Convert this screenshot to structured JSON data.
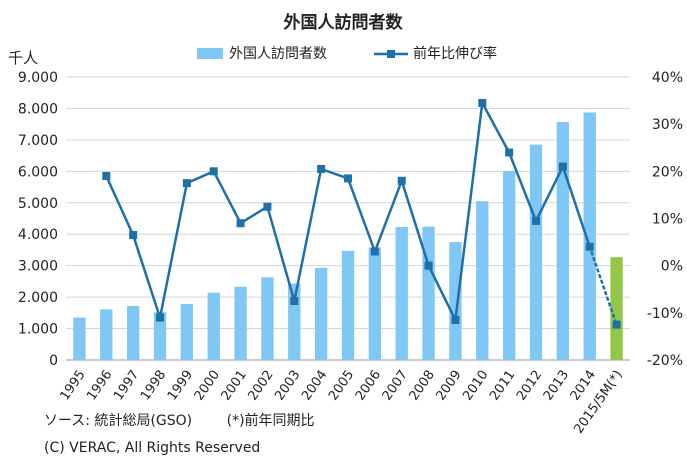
{
  "chart_data": {
    "type": "bar",
    "title": "外国人訪問者数",
    "left_axis_unit": "千人",
    "categories": [
      "1995",
      "1996",
      "1997",
      "1998",
      "1999",
      "2000",
      "2001",
      "2002",
      "2003",
      "2004",
      "2005",
      "2006",
      "2007",
      "2008",
      "2009",
      "2010",
      "2011",
      "2012",
      "2013",
      "2014",
      "2015/5M(*)"
    ],
    "y_left": {
      "min": 0,
      "max": 9000,
      "step": 1000,
      "tick_labels": [
        "0",
        "1.000",
        "2.000",
        "3.000",
        "4.000",
        "5.000",
        "6.000",
        "7.000",
        "8.000",
        "9.000"
      ]
    },
    "y_right": {
      "min": -20,
      "max": 40,
      "step": 10,
      "tick_labels": [
        "-20%",
        "-10%",
        "0%",
        "10%",
        "20%",
        "30%",
        "40%"
      ]
    },
    "series": [
      {
        "name": "外国人訪問者数",
        "type": "bar",
        "axis": "left",
        "color": "#7fc7f4",
        "last_bar_color": "#92c74a",
        "values": [
          1350,
          1610,
          1720,
          1520,
          1780,
          2140,
          2330,
          2630,
          2430,
          2930,
          3470,
          3580,
          4230,
          4240,
          3750,
          5050,
          6010,
          6850,
          7570,
          7870,
          3270
        ]
      },
      {
        "name": "前年比伸び率",
        "type": "line",
        "axis": "right",
        "color": "#1f6fa8",
        "last_segment_style": "dotted",
        "values": [
          null,
          19,
          6.5,
          -11,
          17.5,
          20,
          9,
          12.5,
          -7.5,
          20.5,
          18.5,
          3,
          18,
          0,
          -11.5,
          34.5,
          24,
          9.5,
          21,
          4,
          -12.5
        ]
      }
    ],
    "legend_position": "top",
    "gridlines": "horizontal"
  },
  "notes": {
    "source": "ソース: 統計総局(GSO)",
    "asterisk": "(*)前年同期比",
    "copyright": "(C) VERAC, All Rights Reserved"
  }
}
